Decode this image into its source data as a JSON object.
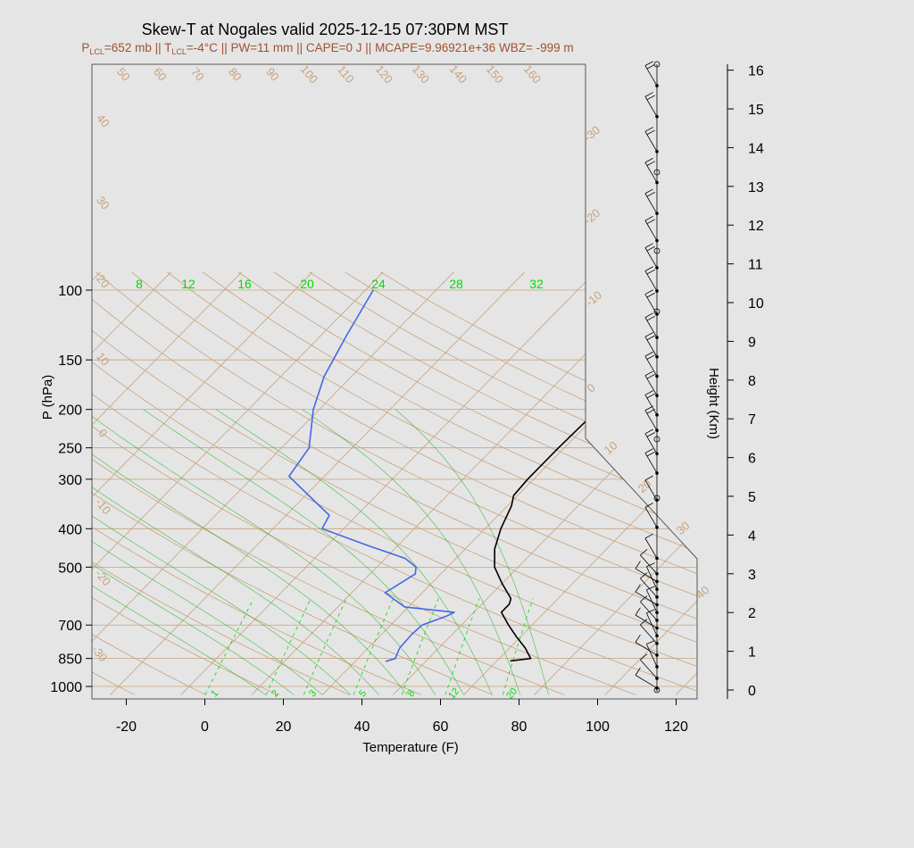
{
  "title": "Skew-T at Nogales valid 2025-12-15 07:30PM MST",
  "subtitle": {
    "p_lcl": "652 mb",
    "t_lcl": "-4",
    "t_lcl_unit": "°C",
    "pw": "11 mm",
    "cape": "0 J",
    "mcape": "9.96921e+36",
    "wbz": "-999 m"
  },
  "subtitle_labels": {
    "p": "P",
    "t": "T",
    "lcl": "LCL",
    "pw": "PW=",
    "cape": "CAPE=",
    "mcape": "MCAPE=",
    "wbz": "WBZ= ",
    "sep": " || "
  },
  "colors": {
    "temperature": "#000000",
    "dewpoint": "#4169e1",
    "dry_adiabat": "#c8a27c",
    "isotherm": "#c8a27c",
    "mixing_ratio": "#00dd00",
    "moist_adiabat": "#00aa00",
    "subtitle": "#a0522d",
    "background": "#e5e5e5"
  },
  "chart_data": {
    "type": "skew-t",
    "xlabel": "Temperature (F)",
    "ylabel": "P (hPa)",
    "y2label": "Height (Km)",
    "x_ticks": [
      -20,
      0,
      20,
      40,
      60,
      80,
      100,
      120
    ],
    "pressure_ticks": [
      100,
      150,
      200,
      250,
      300,
      400,
      500,
      700,
      850,
      1000
    ],
    "height_ticks": [
      0,
      1,
      2,
      3,
      4,
      5,
      6,
      7,
      8,
      9,
      10,
      11,
      12,
      13,
      14,
      15,
      16
    ],
    "dry_adiabat_labels": [
      -30,
      -20,
      -10,
      0,
      10,
      20,
      30,
      40,
      50,
      60,
      70,
      80,
      90,
      100,
      110,
      120,
      130,
      140,
      150,
      160
    ],
    "isotherm_labels": [
      40,
      30,
      20,
      10,
      0,
      -10,
      -20,
      -30
    ],
    "mixing_ratio_labels_upper": [
      8,
      12,
      16,
      20,
      24,
      28,
      32
    ],
    "mixing_ratio_labels_lower": [
      1,
      2,
      3,
      5,
      8,
      12,
      20
    ],
    "temperature_profile": [
      {
        "p": 862,
        "t_f": 71.4
      },
      {
        "p": 850,
        "t_f": 76.0
      },
      {
        "p": 800,
        "t_f": 72.0
      },
      {
        "p": 750,
        "t_f": 67.0
      },
      {
        "p": 700,
        "t_f": 62.0
      },
      {
        "p": 650,
        "t_f": 57.0
      },
      {
        "p": 620,
        "t_f": 57.0
      },
      {
        "p": 600,
        "t_f": 56.0
      },
      {
        "p": 550,
        "t_f": 50.0
      },
      {
        "p": 500,
        "t_f": 44.0
      },
      {
        "p": 450,
        "t_f": 39.5
      },
      {
        "p": 400,
        "t_f": 36.0
      },
      {
        "p": 350,
        "t_f": 33.0
      },
      {
        "p": 330,
        "t_f": 31.0
      },
      {
        "p": 300,
        "t_f": 30.5
      },
      {
        "p": 250,
        "t_f": 30.5
      },
      {
        "p": 200,
        "t_f": 31.0
      },
      {
        "p": 150,
        "t_f": 32.0
      },
      {
        "p": 130,
        "t_f": 31.0
      },
      {
        "p": 110,
        "t_f": 32.5
      },
      {
        "p": 100,
        "t_f": 33.5
      }
    ],
    "dewpoint_profile": [
      {
        "p": 865,
        "t_f": 39.8
      },
      {
        "p": 850,
        "t_f": 41.5
      },
      {
        "p": 800,
        "t_f": 40.0
      },
      {
        "p": 740,
        "t_f": 39.7
      },
      {
        "p": 700,
        "t_f": 40.0
      },
      {
        "p": 665,
        "t_f": 44.0
      },
      {
        "p": 650,
        "t_f": 45.0
      },
      {
        "p": 630,
        "t_f": 31.0
      },
      {
        "p": 580,
        "t_f": 22.5
      },
      {
        "p": 560,
        "t_f": 23.5
      },
      {
        "p": 520,
        "t_f": 25.5
      },
      {
        "p": 500,
        "t_f": 24.0
      },
      {
        "p": 475,
        "t_f": 19.0
      },
      {
        "p": 440,
        "t_f": 6.0
      },
      {
        "p": 400,
        "t_f": -9.5
      },
      {
        "p": 370,
        "t_f": -11.0
      },
      {
        "p": 340,
        "t_f": -18.5
      },
      {
        "p": 295,
        "t_f": -31.0
      },
      {
        "p": 250,
        "t_f": -33.0
      },
      {
        "p": 200,
        "t_f": -41.5
      },
      {
        "p": 165,
        "t_f": -47.0
      },
      {
        "p": 130,
        "t_f": -51.5
      },
      {
        "p": 100,
        "t_f": -56.0
      }
    ],
    "wind_barb_heights_km": [
      0.05,
      0.3,
      0.6,
      0.9,
      1.2,
      1.4,
      1.6,
      1.8,
      2.0,
      2.2,
      2.4,
      2.6,
      2.8,
      3.0,
      3.4,
      4.2,
      4.9,
      5.6,
      6.1,
      6.7,
      7.1,
      7.6,
      8.1,
      8.6,
      9.1,
      9.7,
      10.3,
      10.9,
      11.6,
      12.3,
      13.1,
      13.9,
      14.8,
      15.6
    ]
  }
}
